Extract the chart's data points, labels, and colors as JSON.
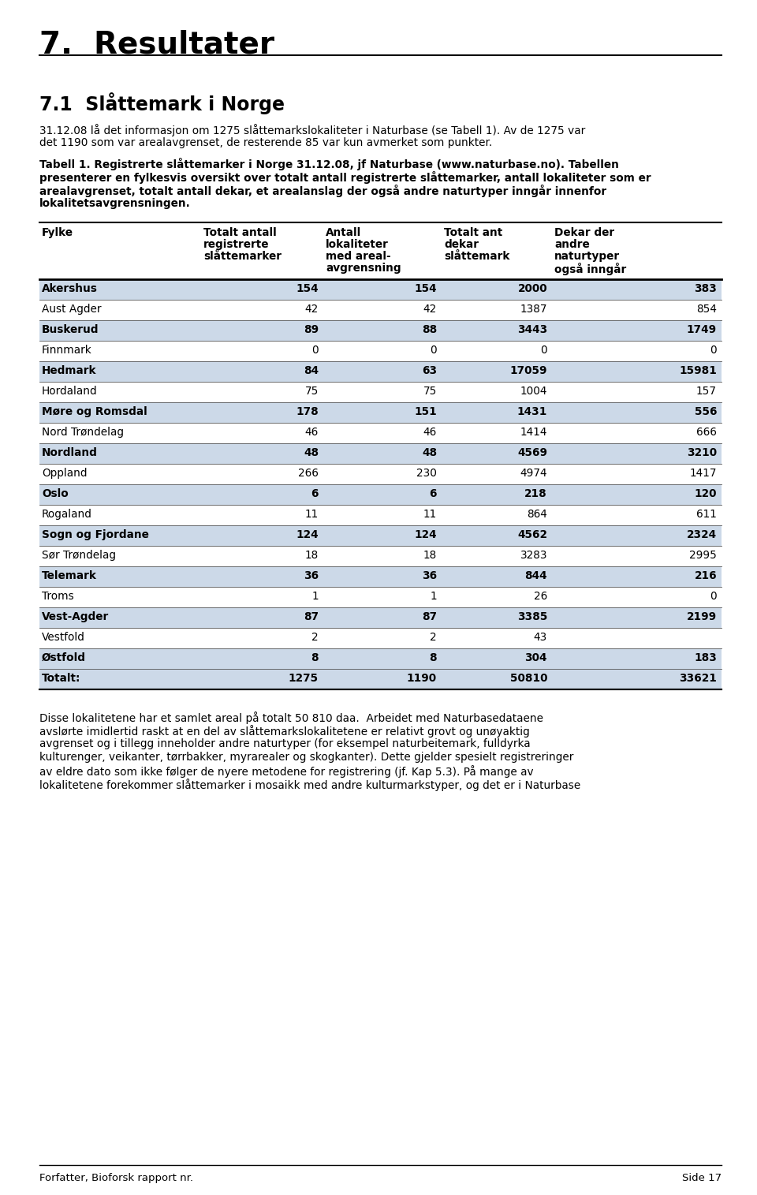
{
  "title": "7.  Resultater",
  "section_title": "7.1  Slåttemark i Norge",
  "para1_line1": "31.12.08 lå det informasjon om 1275 slåttemarkslokaliteter i Naturbase (se Tabell 1). Av de 1275 var",
  "para1_line2": "det 1190 som var arealavgrenset, de resterende 85 var kun avmerket som punkter.",
  "caption_line1": "Tabell 1. Registrerte slåttemarker i Norge 31.12.08, jf Naturbase (www.naturbase.no). Tabellen",
  "caption_line2": "presenterer en fylkesvis oversikt over totalt antall registrerte slåttemarker, antall lokaliteter som er",
  "caption_line3": "arealavgrenset, totalt antall dekar, et arealanslag der også andre naturtyper inngår innenfor",
  "caption_line4": "lokalitetsavgrensningen.",
  "col_headers": [
    "Fylke",
    "Totalt antall\nregistrerte\nslåttemarker",
    "Antall\nlokaliteter\nmed areal-\navgrensning",
    "Totalt ant\ndekar\nslåttemark",
    "Dekar der\nandre\nnaturtyper\nogså inngår"
  ],
  "rows": [
    [
      "Akershus",
      "154",
      "154",
      "2000",
      "383"
    ],
    [
      "Aust Agder",
      "42",
      "42",
      "1387",
      "854"
    ],
    [
      "Buskerud",
      "89",
      "88",
      "3443",
      "1749"
    ],
    [
      "Finnmark",
      "0",
      "0",
      "0",
      "0"
    ],
    [
      "Hedmark",
      "84",
      "63",
      "17059",
      "15981"
    ],
    [
      "Hordaland",
      "75",
      "75",
      "1004",
      "157"
    ],
    [
      "Møre og Romsdal",
      "178",
      "151",
      "1431",
      "556"
    ],
    [
      "Nord Trøndelag",
      "46",
      "46",
      "1414",
      "666"
    ],
    [
      "Nordland",
      "48",
      "48",
      "4569",
      "3210"
    ],
    [
      "Oppland",
      "266",
      "230",
      "4974",
      "1417"
    ],
    [
      "Oslo",
      "6",
      "6",
      "218",
      "120"
    ],
    [
      "Rogaland",
      "11",
      "11",
      "864",
      "611"
    ],
    [
      "Sogn og Fjordane",
      "124",
      "124",
      "4562",
      "2324"
    ],
    [
      "Sør Trøndelag",
      "18",
      "18",
      "3283",
      "2995"
    ],
    [
      "Telemark",
      "36",
      "36",
      "844",
      "216"
    ],
    [
      "Troms",
      "1",
      "1",
      "26",
      "0"
    ],
    [
      "Vest-Agder",
      "87",
      "87",
      "3385",
      "2199"
    ],
    [
      "Vestfold",
      "2",
      "2",
      "43",
      ""
    ],
    [
      "Østfold",
      "8",
      "8",
      "304",
      "183"
    ],
    [
      "Totalt:",
      "1275",
      "1190",
      "50810",
      "33621"
    ]
  ],
  "bold_rows": [
    0,
    2,
    4,
    6,
    8,
    10,
    12,
    14,
    16,
    18,
    19
  ],
  "shaded_rows": [
    0,
    2,
    4,
    6,
    8,
    10,
    12,
    14,
    16,
    18
  ],
  "total_row": 19,
  "para2_lines": [
    "Disse lokalitetene har et samlet areal på totalt 50 810 daa.  Arbeidet med Naturbasedataene",
    "avslørte imidlertid raskt at en del av slåttemarkslokalitetene er relativt grovt og unøyaktig",
    "avgrenset og i tillegg inneholder andre naturtyper (for eksempel naturbeitemark, fulldyrka",
    "kulturenger, veikanter, tørrbakker, myrarealer og skogkanter). Dette gjelder spesielt registreringer",
    "av eldre dato som ikke følger de nyere metodene for registrering (jf. Kap 5.3). På mange av",
    "lokalitetene forekommer slåttemarker i mosaikk med andre kulturmarkstyper, og det er i Naturbase"
  ],
  "footer_left": "Forfatter, Bioforsk rapport nr.",
  "footer_right": "Side 17",
  "bg_color": "#ffffff",
  "shaded_color": "#ccd9e8",
  "text_color": "#000000",
  "title_font_size": 28,
  "section_font_size": 17,
  "body_font_size": 9.8,
  "table_font_size": 9.8,
  "caption_font_size": 9.8,
  "footer_font_size": 9.5
}
